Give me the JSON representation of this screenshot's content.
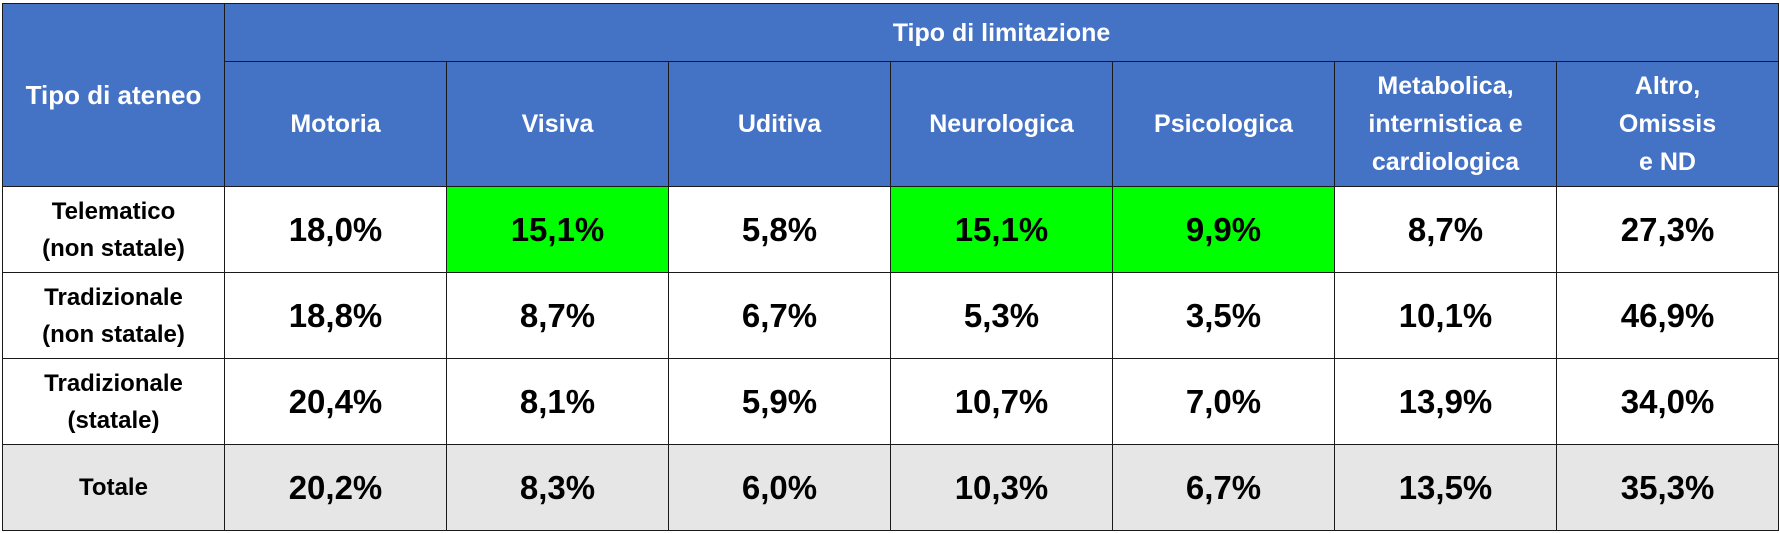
{
  "table": {
    "corner_label": "Tipo di ateneo",
    "group_label": "Tipo di limitazione",
    "columns": [
      "Motoria",
      "Visiva",
      "Uditiva",
      "Neurologica",
      "Psicologica",
      "Metabolica,\ninternistica e\ncardiologica",
      "Altro,\nOmissis\ne ND"
    ],
    "rows": [
      {
        "label": "Telematico\n(non statale)",
        "values": [
          "18,0%",
          "15,1%",
          "5,8%",
          "15,1%",
          "9,9%",
          "8,7%",
          "27,3%"
        ]
      },
      {
        "label": "Tradizionale\n(non statale)",
        "values": [
          "18,8%",
          "8,7%",
          "6,7%",
          "5,3%",
          "3,5%",
          "10,1%",
          "46,9%"
        ]
      },
      {
        "label": "Tradizionale\n(statale)",
        "values": [
          "20,4%",
          "8,1%",
          "5,9%",
          "10,7%",
          "7,0%",
          "13,9%",
          "34,0%"
        ]
      },
      {
        "label": "Totale",
        "values": [
          "20,2%",
          "8,3%",
          "6,0%",
          "10,3%",
          "6,7%",
          "13,5%",
          "35,3%"
        ]
      }
    ],
    "colors": {
      "header_bg": "#4472c4",
      "highlight": "#00ff00",
      "total_bg": "#e7e6e6"
    }
  }
}
